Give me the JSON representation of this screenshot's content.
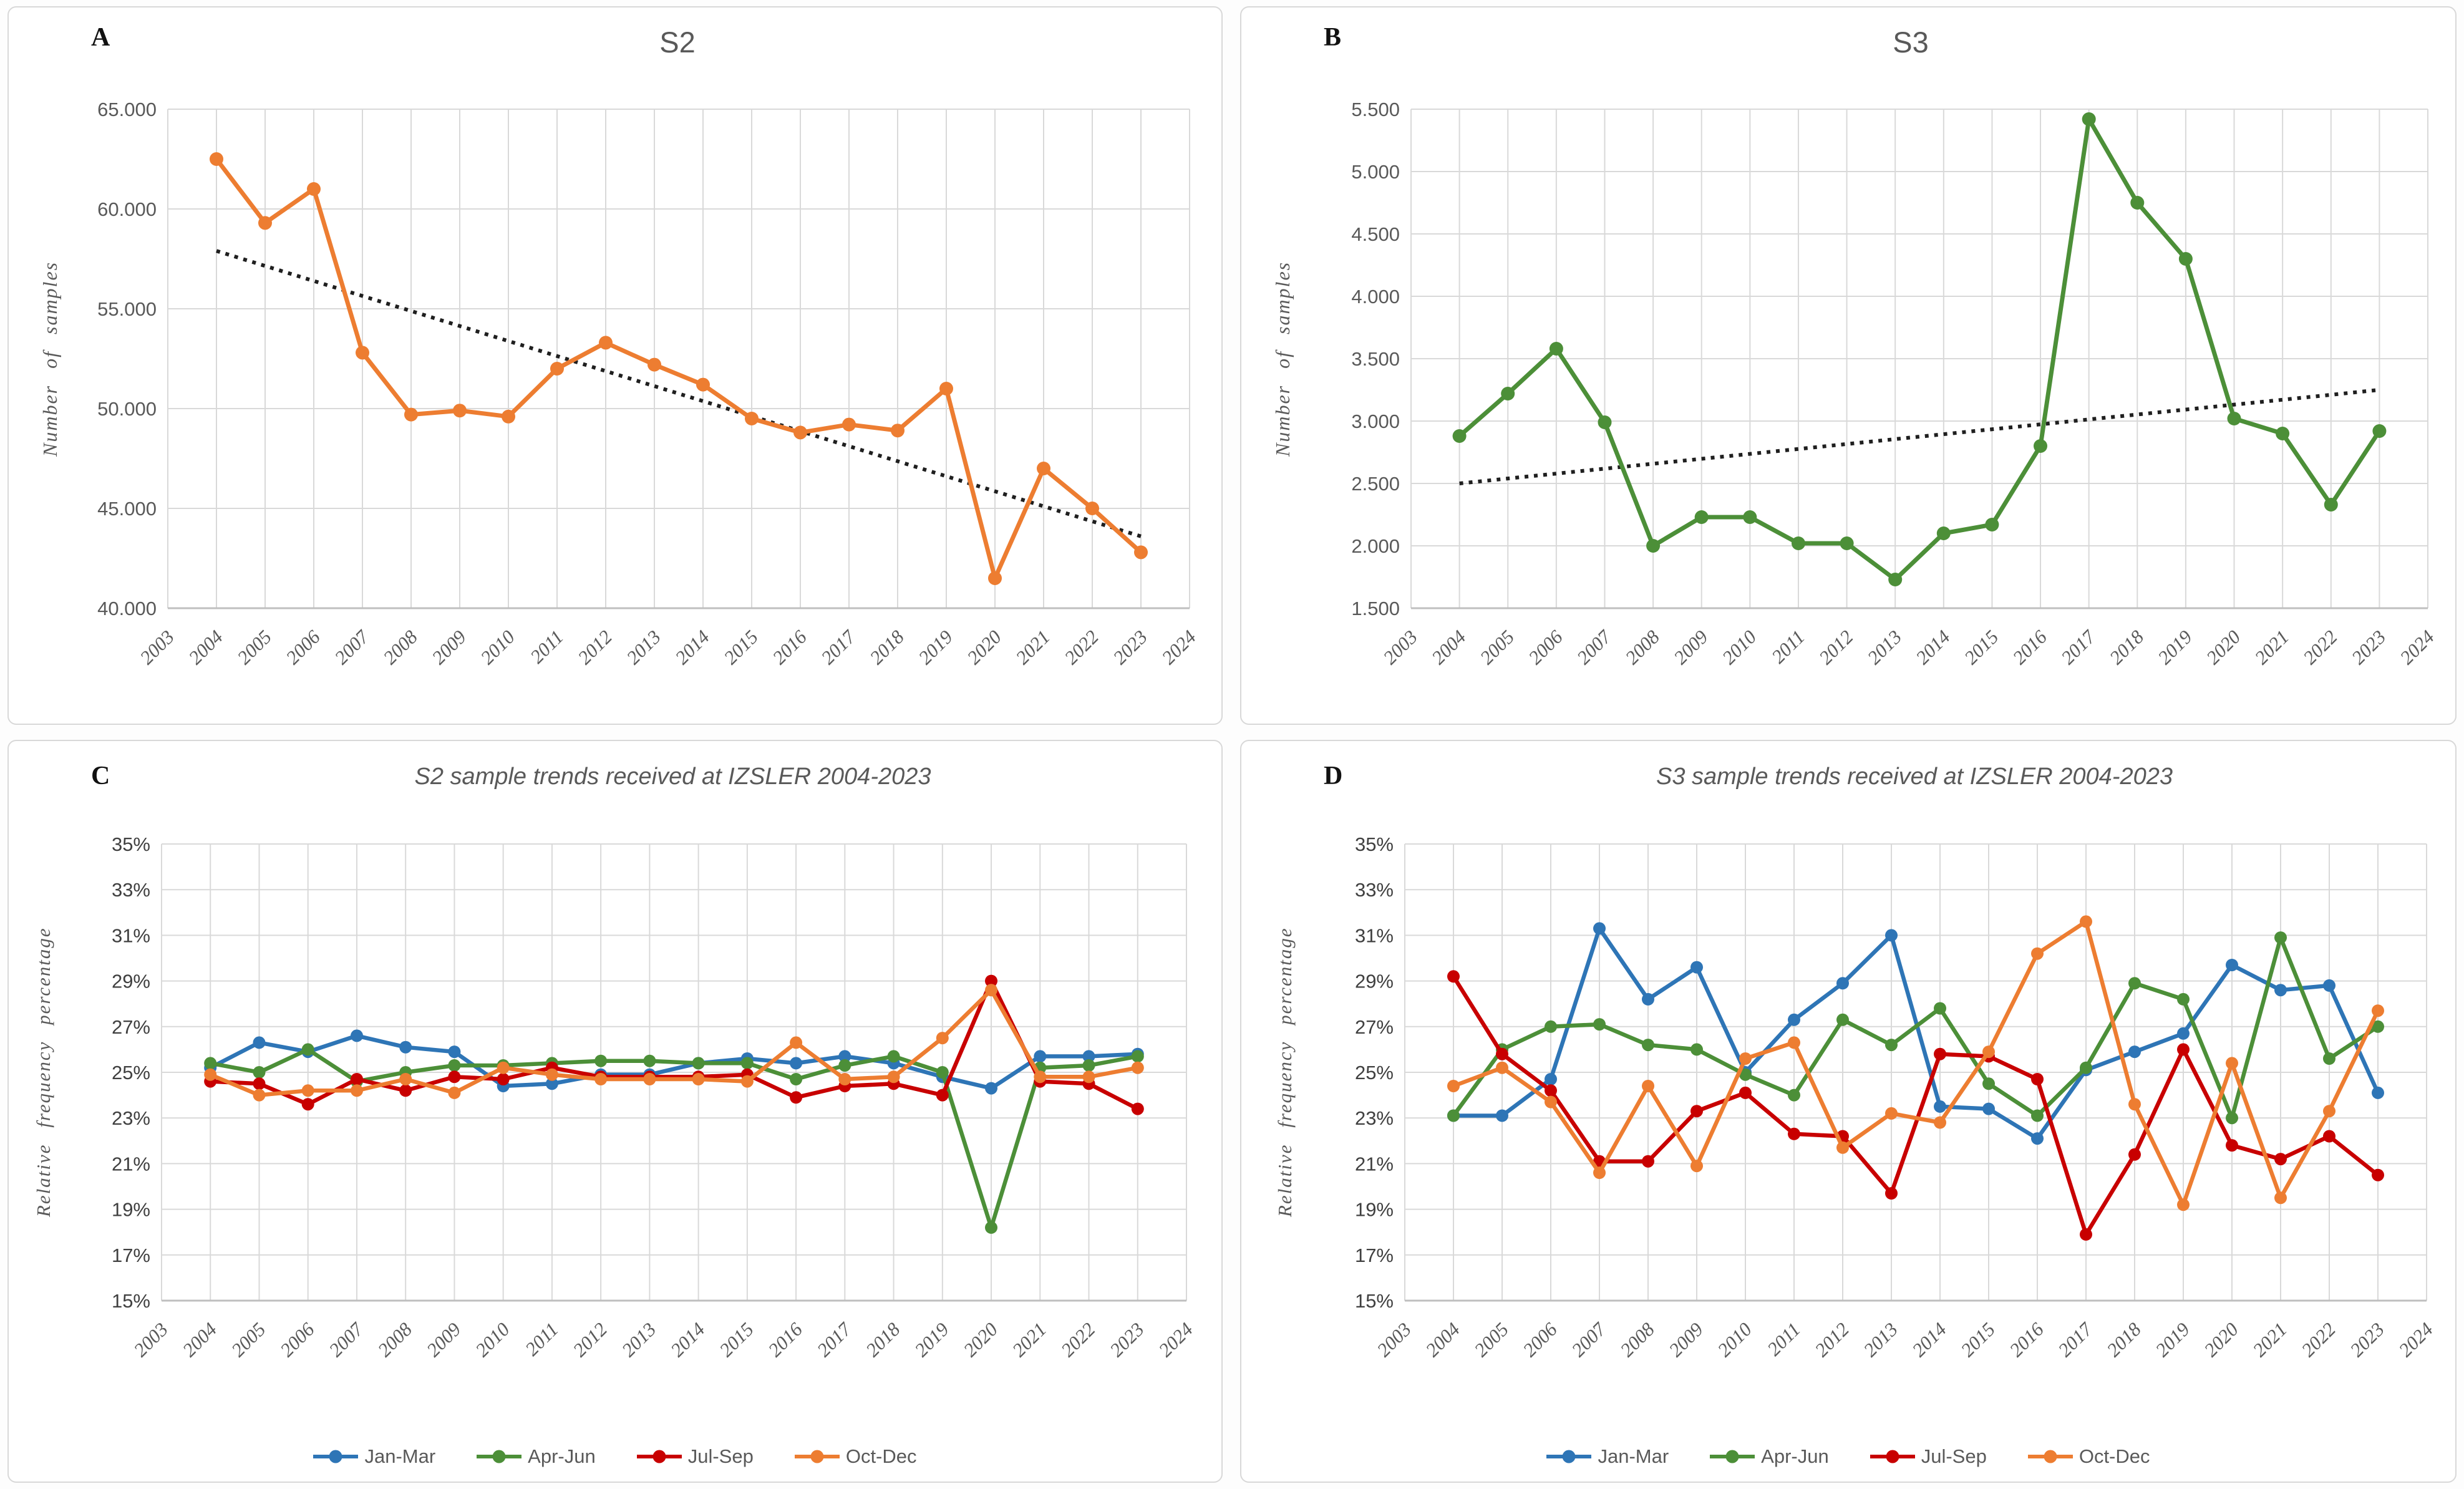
{
  "colors": {
    "grid": "#D9D9D9",
    "axis_line": "#BFBFBF",
    "tick_text": "#595959",
    "trendline": "#1F1F1F",
    "jan_mar_blue": "#2E75B6",
    "apr_jun_green": "#4C8F38",
    "jul_sep_red": "#C80000",
    "oct_dec_orange": "#ED7D31"
  },
  "chart_data": [
    {
      "type": "line",
      "panel_letter": "A",
      "title": "S2",
      "ylabel": "Number of samples",
      "xlabel": "",
      "x_labels": [
        "2003",
        "2004",
        "2005",
        "2006",
        "2007",
        "2008",
        "2009",
        "2010",
        "2011",
        "2012",
        "2013",
        "2014",
        "2015",
        "2016",
        "2017",
        "2018",
        "2019",
        "2020",
        "2021",
        "2022",
        "2023",
        "2024"
      ],
      "ylim": [
        40000,
        65000
      ],
      "grid": true,
      "legend_position": "none",
      "y_ticks": [
        {
          "v": 65000,
          "t": "65.000"
        },
        {
          "v": 60000,
          "t": "60.000"
        },
        {
          "v": 55000,
          "t": "55.000"
        },
        {
          "v": 50000,
          "t": "50.000"
        },
        {
          "v": 45000,
          "t": "45.000"
        },
        {
          "v": 40000,
          "t": "40.000"
        }
      ],
      "series": [
        {
          "name": "S2",
          "color": "#ED7D31",
          "start_year": 2004,
          "values": [
            62500,
            59300,
            61000,
            52800,
            49700,
            49900,
            49600,
            52000,
            53300,
            52200,
            51200,
            49500,
            48800,
            49200,
            48900,
            51000,
            41500,
            47000,
            45000,
            42800
          ]
        }
      ],
      "trendline": {
        "color": "#1F1F1F",
        "x1": 2004,
        "y1": 57900,
        "x2": 2023,
        "y2": 43600
      }
    },
    {
      "type": "line",
      "panel_letter": "B",
      "title": "S3",
      "ylabel": "Number of samples",
      "xlabel": "",
      "x_labels": [
        "2003",
        "2004",
        "2005",
        "2006",
        "2007",
        "2008",
        "2009",
        "2010",
        "2011",
        "2012",
        "2013",
        "2014",
        "2015",
        "2016",
        "2017",
        "2018",
        "2019",
        "2020",
        "2021",
        "2022",
        "2023",
        "2024"
      ],
      "ylim": [
        1500,
        5500
      ],
      "grid": true,
      "legend_position": "none",
      "y_ticks": [
        {
          "v": 5500,
          "t": "5.500"
        },
        {
          "v": 5000,
          "t": "5.000"
        },
        {
          "v": 4500,
          "t": "4.500"
        },
        {
          "v": 4000,
          "t": "4.000"
        },
        {
          "v": 3500,
          "t": "3.500"
        },
        {
          "v": 3000,
          "t": "3.000"
        },
        {
          "v": 2500,
          "t": "2.500"
        },
        {
          "v": 2000,
          "t": "2.000"
        },
        {
          "v": 1500,
          "t": "1.500"
        }
      ],
      "series": [
        {
          "name": "S3",
          "color": "#4C8F38",
          "start_year": 2004,
          "values": [
            2880,
            3220,
            3580,
            2990,
            2000,
            2230,
            2230,
            2020,
            2020,
            1730,
            2100,
            2170,
            2800,
            5420,
            4750,
            4300,
            3020,
            2900,
            2330,
            2920
          ]
        }
      ],
      "trendline": {
        "color": "#1F1F1F",
        "x1": 2004,
        "y1": 2500,
        "x2": 2023,
        "y2": 3250
      }
    },
    {
      "type": "line",
      "panel_letter": "C",
      "title": "S2 sample trends received at IZSLER 2004-2023",
      "ylabel": "Relative frequency  percentage",
      "xlabel": "",
      "x_labels": [
        "2003",
        "2004",
        "2005",
        "2006",
        "2007",
        "2008",
        "2009",
        "2010",
        "2011",
        "2012",
        "2013",
        "2014",
        "2015",
        "2016",
        "2017",
        "2018",
        "2019",
        "2020",
        "2021",
        "2022",
        "2023",
        "2024"
      ],
      "ylim": [
        15,
        35
      ],
      "grid": true,
      "legend_position": "bottom",
      "y_ticks": [
        {
          "v": 35,
          "t": "35%"
        },
        {
          "v": 33,
          "t": "33%"
        },
        {
          "v": 31,
          "t": "31%"
        },
        {
          "v": 29,
          "t": "29%"
        },
        {
          "v": 27,
          "t": "27%"
        },
        {
          "v": 25,
          "t": "25%"
        },
        {
          "v": 23,
          "t": "23%"
        },
        {
          "v": 21,
          "t": "21%"
        },
        {
          "v": 19,
          "t": "19%"
        },
        {
          "v": 17,
          "t": "17%"
        },
        {
          "v": 15,
          "t": "15%"
        }
      ],
      "series": [
        {
          "name": "Jan-Mar",
          "color": "#2E75B6",
          "start_year": 2004,
          "values": [
            25.2,
            26.3,
            25.9,
            26.6,
            26.1,
            25.9,
            24.4,
            24.5,
            24.9,
            24.9,
            25.4,
            25.6,
            25.4,
            25.7,
            25.4,
            24.8,
            24.3,
            25.7,
            25.7,
            25.8
          ]
        },
        {
          "name": "Apr-Jun",
          "color": "#4C8F38",
          "start_year": 2004,
          "values": [
            25.4,
            25.0,
            26.0,
            24.6,
            25.0,
            25.3,
            25.3,
            25.4,
            25.5,
            25.5,
            25.4,
            25.4,
            24.7,
            25.3,
            25.7,
            25.0,
            18.2,
            25.2,
            25.3,
            25.7
          ]
        },
        {
          "name": "Jul-Sep",
          "color": "#C80000",
          "start_year": 2004,
          "values": [
            24.6,
            24.5,
            23.6,
            24.7,
            24.2,
            24.8,
            24.7,
            25.2,
            24.8,
            24.8,
            24.8,
            24.9,
            23.9,
            24.4,
            24.5,
            24.0,
            29.0,
            24.6,
            24.5,
            23.4
          ]
        },
        {
          "name": "Oct-Dec",
          "color": "#ED7D31",
          "start_year": 2004,
          "values": [
            24.9,
            24.0,
            24.2,
            24.2,
            24.7,
            24.1,
            25.2,
            24.9,
            24.7,
            24.7,
            24.7,
            24.6,
            26.3,
            24.7,
            24.8,
            26.5,
            28.6,
            24.8,
            24.8,
            25.2
          ]
        }
      ],
      "trendline": null
    },
    {
      "type": "line",
      "panel_letter": "D",
      "title": "S3 sample trends received at IZSLER 2004-2023",
      "ylabel": "Relative frequency  percentage",
      "xlabel": "",
      "x_labels": [
        "2003",
        "2004",
        "2005",
        "2006",
        "2007",
        "2008",
        "2009",
        "2010",
        "2011",
        "2012",
        "2013",
        "2014",
        "2015",
        "2016",
        "2017",
        "2018",
        "2019",
        "2020",
        "2021",
        "2022",
        "2023",
        "2024"
      ],
      "ylim": [
        15,
        35
      ],
      "grid": true,
      "legend_position": "bottom",
      "y_ticks": [
        {
          "v": 35,
          "t": "35%"
        },
        {
          "v": 33,
          "t": "33%"
        },
        {
          "v": 31,
          "t": "31%"
        },
        {
          "v": 29,
          "t": "29%"
        },
        {
          "v": 27,
          "t": "27%"
        },
        {
          "v": 25,
          "t": "25%"
        },
        {
          "v": 23,
          "t": "23%"
        },
        {
          "v": 21,
          "t": "21%"
        },
        {
          "v": 19,
          "t": "19%"
        },
        {
          "v": 17,
          "t": "17%"
        },
        {
          "v": 15,
          "t": "15%"
        }
      ],
      "series": [
        {
          "name": "Jan-Mar",
          "color": "#2E75B6",
          "start_year": 2004,
          "values": [
            23.1,
            23.1,
            24.7,
            31.3,
            28.2,
            29.6,
            25.0,
            27.3,
            28.9,
            31.0,
            23.5,
            23.4,
            22.1,
            25.1,
            25.9,
            26.7,
            29.7,
            28.6,
            28.8,
            24.1
          ]
        },
        {
          "name": "Apr-Jun",
          "color": "#4C8F38",
          "start_year": 2004,
          "values": [
            23.1,
            26.0,
            27.0,
            27.1,
            26.2,
            26.0,
            24.9,
            24.0,
            27.3,
            26.2,
            27.8,
            24.5,
            23.1,
            25.2,
            28.9,
            28.2,
            23.0,
            30.9,
            25.6,
            27.0
          ]
        },
        {
          "name": "Jul-Sep",
          "color": "#C80000",
          "start_year": 2004,
          "values": [
            29.2,
            25.8,
            24.2,
            21.1,
            21.1,
            23.3,
            24.1,
            22.3,
            22.2,
            19.7,
            25.8,
            25.7,
            24.7,
            17.9,
            21.4,
            26.0,
            21.8,
            21.2,
            22.2,
            20.5
          ]
        },
        {
          "name": "Oct-Dec",
          "color": "#ED7D31",
          "start_year": 2004,
          "values": [
            24.4,
            25.2,
            23.7,
            20.6,
            24.4,
            20.9,
            25.6,
            26.3,
            21.7,
            23.2,
            22.8,
            25.9,
            30.2,
            31.6,
            23.6,
            19.2,
            25.4,
            19.5,
            23.3,
            27.7
          ]
        }
      ],
      "trendline": null
    }
  ]
}
